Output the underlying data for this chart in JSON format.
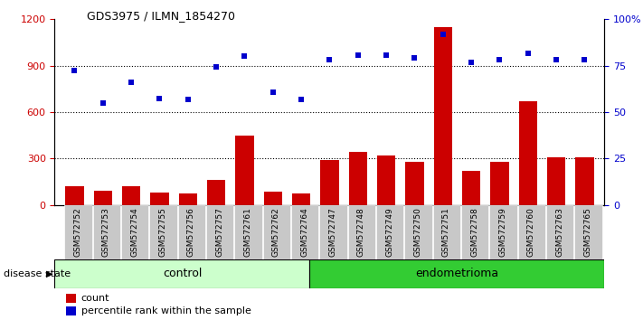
{
  "title": "GDS3975 / ILMN_1854270",
  "samples": [
    "GSM572752",
    "GSM572753",
    "GSM572754",
    "GSM572755",
    "GSM572756",
    "GSM572757",
    "GSM572761",
    "GSM572762",
    "GSM572764",
    "GSM572747",
    "GSM572748",
    "GSM572749",
    "GSM572750",
    "GSM572751",
    "GSM572758",
    "GSM572759",
    "GSM572760",
    "GSM572763",
    "GSM572765"
  ],
  "counts": [
    120,
    90,
    120,
    80,
    75,
    160,
    450,
    85,
    75,
    290,
    340,
    320,
    280,
    1150,
    220,
    280,
    670,
    310,
    310
  ],
  "percentiles": [
    870,
    660,
    790,
    690,
    680,
    890,
    960,
    730,
    680,
    940,
    970,
    970,
    950,
    1100,
    920,
    940,
    980,
    940,
    940
  ],
  "n_control": 9,
  "n_endometrioma": 10,
  "ylim_left": [
    0,
    1200
  ],
  "yticks_left": [
    0,
    300,
    600,
    900,
    1200
  ],
  "ytick_labels_left": [
    "0",
    "300",
    "600",
    "900",
    "1200"
  ],
  "yticks_right": [
    0,
    25,
    50,
    75,
    100
  ],
  "ytick_labels_right": [
    "0",
    "25",
    "50",
    "75",
    "100%"
  ],
  "bar_color": "#cc0000",
  "dot_color": "#0000cc",
  "control_bg": "#ccffcc",
  "endometrioma_bg": "#33cc33",
  "label_bg": "#c8c8c8",
  "legend_count_label": "count",
  "legend_pct_label": "percentile rank within the sample",
  "disease_state_label": "disease state",
  "control_label": "control",
  "endometrioma_label": "endometrioma",
  "grid_dotted_at": [
    300,
    600,
    900
  ]
}
